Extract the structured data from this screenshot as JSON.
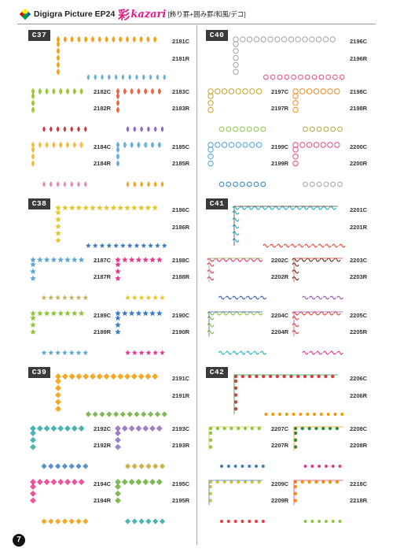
{
  "header": {
    "title": "Digigra Picture EP24",
    "kanji": "彩",
    "brand": "kazari",
    "subtitle": "[飾り罫+囲み罫/和風/デコ]"
  },
  "page_number": "7",
  "sections": [
    {
      "label": "C37",
      "codes": [
        "2181C",
        "2181R",
        "2182C",
        "2182R",
        "2183C",
        "2183R",
        "2184C",
        "2184R",
        "2185C",
        "2185R"
      ]
    },
    {
      "label": "C40",
      "codes": [
        "2196C",
        "2196R",
        "2197C",
        "2197R",
        "2198C",
        "2198R",
        "2199C",
        "2199R",
        "2200C",
        "2200R"
      ]
    },
    {
      "label": "C38",
      "codes": [
        "2186C",
        "2186R",
        "2187C",
        "2187R",
        "2188C",
        "2188R",
        "2189C",
        "2189R",
        "2190C",
        "2190R"
      ]
    },
    {
      "label": "C41",
      "codes": [
        "2201C",
        "2201R",
        "2202C",
        "2202R",
        "2203C",
        "2203R",
        "2204C",
        "2204R",
        "2205C",
        "2205R"
      ]
    },
    {
      "label": "C39",
      "codes": [
        "2191C",
        "2191R",
        "2192C",
        "2192R",
        "2193C",
        "2193R",
        "2194C",
        "2194R",
        "2195C",
        "2195R"
      ]
    },
    {
      "label": "C42",
      "codes": [
        "2206C",
        "2206R",
        "2207C",
        "2207R",
        "2208C",
        "2208R",
        "2209C",
        "2209R",
        "2218C",
        "2218R"
      ]
    }
  ],
  "colors": {
    "c37": [
      "#f39800",
      "#8fc31f",
      "#ea5532",
      "#f7b52c",
      "#5aa7d6",
      "#c1272d",
      "#7e57c2",
      "#e87ba6"
    ],
    "c40": [
      "#9aa6ad",
      "#c9a227",
      "#f08a24",
      "#4aa3df",
      "#e84c7f",
      "#8dc63f",
      "#b5a642",
      "#2f7fc1"
    ],
    "c38": [
      "#e5c62c",
      "#5aa7d6",
      "#e8378c",
      "#8dc63f",
      "#3b7dc4",
      "#c7b35b"
    ],
    "c41": [
      "#1fb3c8",
      "#e8378c",
      "#6b3b2a",
      "#8dc63f",
      "#e84c3d",
      "#3b5fc4",
      "#9b59b6"
    ],
    "c39": [
      "#f39800",
      "#2ca6a4",
      "#8e6bbf",
      "#e8378c",
      "#6aaa3a",
      "#3b7dc4",
      "#c9a227"
    ],
    "c42": [
      "#e83838",
      "#8dc63f",
      "#1e8f3e",
      "#d6c43a",
      "#f39800",
      "#3b7dc4",
      "#e8378c"
    ]
  }
}
